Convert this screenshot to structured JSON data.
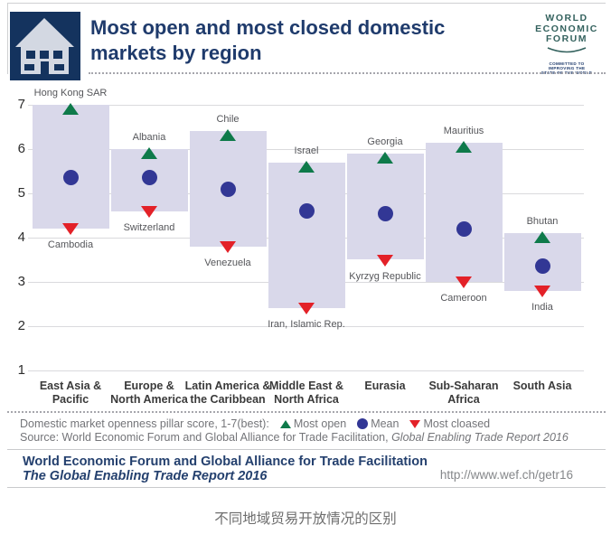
{
  "header": {
    "title_line1": "Most open and most closed domestic",
    "title_line2": "markets by region",
    "icon": "building-icon",
    "logo": {
      "line1": "WORLD",
      "line2": "ECONOMIC",
      "line3": "FORUM",
      "tagline": [
        "COMMITTED TO",
        "IMPROVING THE",
        "STATE OF THE WORLD"
      ]
    }
  },
  "chart_data": {
    "type": "range-bar",
    "title": "Most open and most closed domestic markets by region",
    "ylabel": "Domestic market openness pillar score",
    "ylim": [
      1,
      7
    ],
    "yticks": [
      7,
      6,
      5,
      4,
      3,
      2,
      1
    ],
    "grid": true,
    "legend_position": "bottom",
    "categories": [
      [
        "East Asia &",
        "Pacific"
      ],
      [
        "Europe &",
        "North America"
      ],
      [
        "Latin America &",
        "the Caribbean"
      ],
      [
        "Middle East &",
        "North Africa"
      ],
      [
        "Eurasia"
      ],
      [
        "Sub-Saharan",
        "Africa"
      ],
      [
        "South Asia"
      ]
    ],
    "series": [
      {
        "region": "East Asia & Pacific",
        "most_open": {
          "label": "Hong Kong SAR",
          "value": 7.0
        },
        "mean": 5.35,
        "most_closed": {
          "label": "Cambodia",
          "value": 4.2
        }
      },
      {
        "region": "Europe & North America",
        "most_open": {
          "label": "Albania",
          "value": 6.0
        },
        "mean": 5.35,
        "most_closed": {
          "label": "Switzerland",
          "value": 4.6
        }
      },
      {
        "region": "Latin America & the Caribbean",
        "most_open": {
          "label": "Chile",
          "value": 6.4
        },
        "mean": 5.1,
        "most_closed": {
          "label": "Venezuela",
          "value": 3.8
        }
      },
      {
        "region": "Middle East & North Africa",
        "most_open": {
          "label": "Israel",
          "value": 5.7
        },
        "mean": 4.6,
        "most_closed": {
          "label": "Iran, Islamic Rep.",
          "value": 2.4
        }
      },
      {
        "region": "Eurasia",
        "most_open": {
          "label": "Georgia",
          "value": 5.9
        },
        "mean": 4.55,
        "most_closed": {
          "label": "Kyrzyg Republic",
          "value": 3.5
        }
      },
      {
        "region": "Sub-Saharan Africa",
        "most_open": {
          "label": "Mauritius",
          "value": 6.15
        },
        "mean": 4.2,
        "most_closed": {
          "label": "Cameroon",
          "value": 3.0
        }
      },
      {
        "region": "South Asia",
        "most_open": {
          "label": "Bhutan",
          "value": 4.1
        },
        "mean": 3.35,
        "most_closed": {
          "label": "India",
          "value": 2.8
        }
      }
    ],
    "colors": {
      "bar": "#d9d8ea",
      "most_open": "#0e7a4a",
      "mean": "#323795",
      "most_closed": "#e32128",
      "grid": "#dadadd",
      "navy": "#1f3b6c"
    }
  },
  "footnote": {
    "scale_note": "Domestic market openness pillar score, 1-7(best):",
    "legend_items": [
      {
        "icon": "triangle-up-icon",
        "label": "Most open"
      },
      {
        "icon": "circle-icon",
        "label": "Mean"
      },
      {
        "icon": "triangle-down-icon",
        "label": "Most cloased"
      }
    ],
    "source_prefix": "Source: World Economic Forum and Global Alliance for Trade Facilitation, ",
    "source_title": "Global Enabling Trade Report 2016"
  },
  "footer": {
    "publisher": "World Economic Forum and Global Alliance for Trade Facilitation",
    "report_title": "The Global Enabling Trade Report 2016",
    "url": "http://www.wef.ch/getr16"
  },
  "caption": "不同地域贸易开放情况的区别"
}
